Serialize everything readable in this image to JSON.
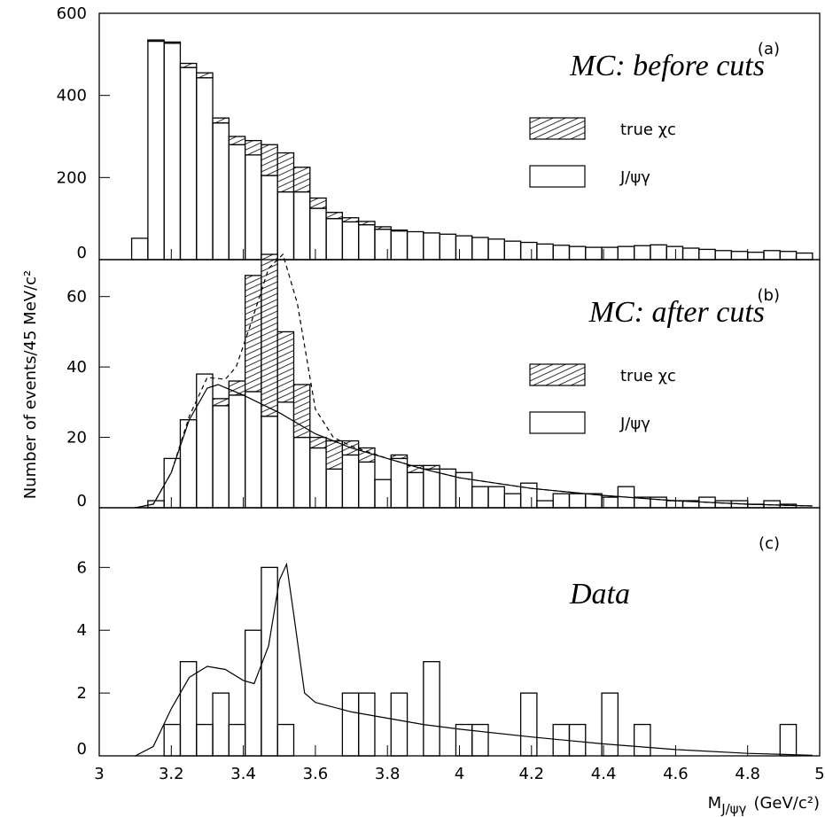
{
  "chart_data": [
    {
      "type": "histogram",
      "label": "(a)",
      "title": "MC: before cuts",
      "bins": [
        3,
        3.045,
        3.09,
        3.135,
        3.18,
        3.225,
        3.27,
        3.315,
        3.36,
        3.405,
        3.45,
        3.495,
        3.54,
        3.585,
        3.63,
        3.675,
        3.72,
        3.765,
        3.81,
        3.855,
        3.9,
        3.945,
        3.99,
        4.035,
        4.08,
        4.125,
        4.17,
        4.215,
        4.26,
        4.305,
        4.35,
        4.395,
        4.44,
        4.485,
        4.53,
        4.575,
        4.62,
        4.665,
        4.71,
        4.755,
        4.8,
        4.845,
        4.89,
        4.935,
        4.98
      ],
      "series": [
        {
          "name": "J/ψγ",
          "fill": "none",
          "values": [
            0,
            0,
            52,
            532,
            527,
            468,
            443,
            333,
            280,
            255,
            205,
            165,
            165,
            125,
            100,
            92,
            85,
            74,
            70,
            68,
            65,
            62,
            58,
            54,
            50,
            45,
            42,
            38,
            35,
            32,
            30,
            30,
            32,
            34,
            36,
            32,
            28,
            25,
            22,
            20,
            18,
            22,
            20,
            16
          ]
        },
        {
          "name": "true χc",
          "fill": "hatch",
          "values": [
            0,
            0,
            0,
            3,
            3,
            10,
            12,
            12,
            20,
            35,
            75,
            95,
            60,
            25,
            15,
            10,
            8,
            6,
            2,
            0,
            0,
            0,
            0,
            0,
            0,
            0,
            0,
            0,
            0,
            0,
            0,
            0,
            0,
            0,
            0,
            0,
            0,
            0,
            0,
            0,
            0,
            0,
            0,
            0
          ]
        }
      ],
      "xlim": [
        3,
        5
      ],
      "ylim": [
        0,
        600
      ],
      "yticks": [
        0,
        200,
        400,
        600
      ]
    },
    {
      "type": "histogram",
      "label": "(b)",
      "title": "MC: after cuts",
      "y_label": "Number of events/45 MeV/c²",
      "bins": [
        3,
        3.045,
        3.09,
        3.135,
        3.18,
        3.225,
        3.27,
        3.315,
        3.36,
        3.405,
        3.45,
        3.495,
        3.54,
        3.585,
        3.63,
        3.675,
        3.72,
        3.765,
        3.81,
        3.855,
        3.9,
        3.945,
        3.99,
        4.035,
        4.08,
        4.125,
        4.17,
        4.215,
        4.26,
        4.305,
        4.35,
        4.395,
        4.44,
        4.485,
        4.53,
        4.575,
        4.62,
        4.665,
        4.71,
        4.755,
        4.8,
        4.845,
        4.89,
        4.935,
        4.98
      ],
      "series": [
        {
          "name": "J/ψγ",
          "fill": "none",
          "values": [
            0,
            0,
            0,
            2,
            14,
            25,
            38,
            29,
            32,
            33,
            26,
            30,
            20,
            17,
            11,
            15,
            13,
            8,
            14,
            10,
            11,
            11,
            10,
            6,
            6,
            4,
            7,
            2,
            4,
            4,
            4,
            3,
            6,
            3,
            3,
            2,
            2,
            3,
            2,
            2,
            1,
            2,
            1,
            0
          ]
        },
        {
          "name": "true χc",
          "fill": "hatch",
          "values": [
            0,
            0,
            0,
            0,
            0,
            0,
            0,
            2,
            4,
            33,
            46,
            20,
            15,
            3,
            8,
            4,
            4,
            0,
            1,
            2,
            1,
            0,
            0,
            0,
            0,
            0,
            0,
            0,
            0,
            0,
            0,
            0,
            0,
            0,
            0,
            0,
            0,
            0,
            0,
            0,
            0,
            0,
            0,
            0
          ]
        }
      ],
      "lines": [
        {
          "style": "solid",
          "x": [
            3.1,
            3.15,
            3.2,
            3.25,
            3.3,
            3.33,
            3.4,
            3.5,
            3.6,
            3.7,
            3.8,
            3.9,
            4.0,
            4.2,
            4.4,
            4.6,
            4.8,
            4.98
          ],
          "y": [
            0,
            1,
            10,
            25,
            34,
            35,
            32,
            27,
            21,
            17,
            14,
            11,
            8.5,
            5.5,
            3.5,
            2,
            1,
            0.5
          ]
        },
        {
          "style": "dashed",
          "x": [
            3.1,
            3.15,
            3.2,
            3.25,
            3.3,
            3.35,
            3.38,
            3.42,
            3.47,
            3.51,
            3.55,
            3.6,
            3.65,
            3.7,
            3.8,
            3.9,
            4.0,
            4.2,
            4.4,
            4.6,
            4.8,
            4.98
          ],
          "y": [
            0,
            1,
            10,
            26,
            37,
            36.5,
            40,
            52,
            68,
            72,
            58,
            28,
            20,
            17.5,
            14,
            11,
            8.5,
            5.5,
            3.5,
            2,
            1,
            0.5
          ]
        }
      ],
      "xlim": [
        3,
        5
      ],
      "ylim": [
        0,
        70.5
      ],
      "yticks": [
        0,
        20,
        40,
        60
      ]
    },
    {
      "type": "histogram",
      "label": "(c)",
      "title": "Data",
      "x_label": "M",
      "x_label_sub": "J/ψγ",
      "x_label_unit": "(GeV/c²)",
      "bins": [
        3,
        3.045,
        3.09,
        3.135,
        3.18,
        3.225,
        3.27,
        3.315,
        3.36,
        3.405,
        3.45,
        3.495,
        3.54,
        3.585,
        3.63,
        3.675,
        3.72,
        3.765,
        3.81,
        3.855,
        3.9,
        3.945,
        3.99,
        4.035,
        4.08,
        4.125,
        4.17,
        4.215,
        4.26,
        4.305,
        4.35,
        4.395,
        4.44,
        4.485,
        4.53,
        4.575,
        4.62,
        4.665,
        4.71,
        4.755,
        4.8,
        4.845,
        4.89,
        4.935,
        4.98
      ],
      "series": [
        {
          "fill": "none",
          "values": [
            0,
            0,
            0,
            0,
            1,
            3,
            1,
            2,
            1,
            4,
            6,
            1,
            0,
            0,
            0,
            2,
            2,
            0,
            2,
            0,
            3,
            0,
            1,
            1,
            0,
            0,
            2,
            0,
            1,
            1,
            0,
            2,
            0,
            1,
            0,
            0,
            0,
            0,
            0,
            0,
            0,
            0,
            1,
            0
          ]
        }
      ],
      "lines": [
        {
          "style": "solid",
          "x": [
            3.1,
            3.15,
            3.2,
            3.25,
            3.3,
            3.35,
            3.4,
            3.43,
            3.47,
            3.5,
            3.52,
            3.54,
            3.57,
            3.6,
            3.7,
            3.8,
            3.9,
            4.0,
            4.2,
            4.4,
            4.6,
            4.8,
            4.98
          ],
          "y": [
            0,
            0.3,
            1.5,
            2.5,
            2.85,
            2.75,
            2.4,
            2.3,
            3.5,
            5.6,
            6.1,
            4.5,
            2,
            1.7,
            1.4,
            1.2,
            1.0,
            0.85,
            0.6,
            0.38,
            0.2,
            0.08,
            0.02
          ]
        }
      ],
      "xlim": [
        3,
        5
      ],
      "ylim": [
        0,
        7.9
      ],
      "yticks": [
        0,
        2,
        4,
        6
      ],
      "xticks": [
        3,
        3.2,
        3.4,
        3.6,
        3.8,
        4,
        4.2,
        4.4,
        4.6,
        4.8,
        5
      ]
    }
  ]
}
